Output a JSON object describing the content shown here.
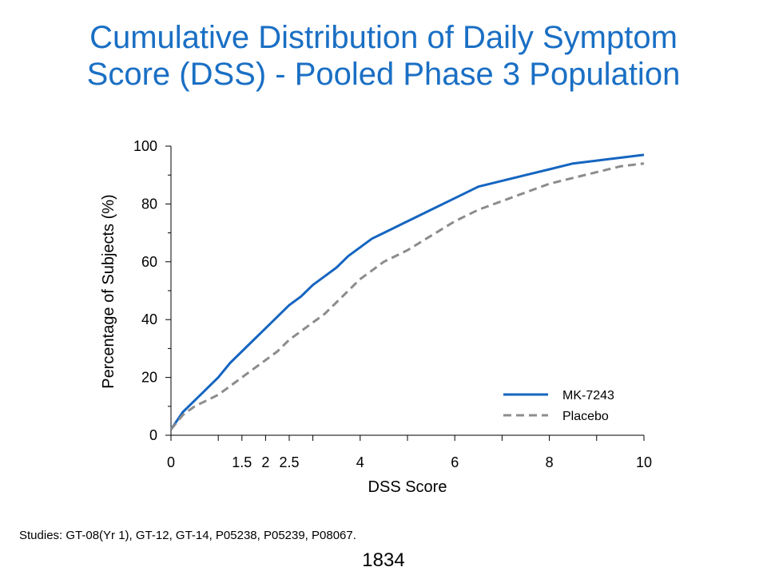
{
  "title_lines": [
    "Cumulative Distribution of Daily Symptom",
    "Score (DSS) - Pooled Phase 3 Population"
  ],
  "footnote": "Studies: GT-08(Yr 1), GT-12, GT-14, P05238, P05239, P08067.",
  "page_number": "1834",
  "colors": {
    "title": "#1a6fc4",
    "mk7243": "#1565c0",
    "placebo": "#8c8c8c"
  },
  "chart_data": {
    "type": "line",
    "title": "",
    "xlabel": "DSS Score",
    "ylabel": "Percentage of Subjects (%)",
    "xlim": [
      0,
      10
    ],
    "ylim": [
      0,
      100
    ],
    "x_ticks": [
      0,
      1.5,
      2,
      2.5,
      4,
      6,
      8,
      10
    ],
    "x_tick_labels": [
      "0",
      "1.5",
      "2",
      "2.5",
      "4",
      "6",
      "8",
      "10"
    ],
    "x_minor_ticks": [
      1,
      3,
      5,
      7,
      9
    ],
    "y_ticks": [
      0,
      20,
      40,
      60,
      80,
      100
    ],
    "y_tick_labels": [
      "0",
      "20",
      "40",
      "60",
      "80",
      "100"
    ],
    "y_minor_ticks": [
      10,
      30,
      50,
      70,
      90
    ],
    "grid": false,
    "legend_position": "bottom-right",
    "series": [
      {
        "name": "MK-7243",
        "style": "solid",
        "x": [
          0,
          0.25,
          0.5,
          0.75,
          1,
          1.25,
          1.5,
          1.75,
          2,
          2.25,
          2.5,
          2.75,
          3,
          3.25,
          3.5,
          3.75,
          4,
          4.25,
          4.5,
          4.75,
          5,
          5.5,
          6,
          6.5,
          7,
          7.5,
          8,
          8.5,
          9,
          9.5,
          10
        ],
        "y": [
          2,
          8,
          12,
          16,
          20,
          25,
          29,
          33,
          37,
          41,
          45,
          48,
          52,
          55,
          58,
          62,
          65,
          68,
          70,
          72,
          74,
          78,
          82,
          86,
          88,
          90,
          92,
          94,
          95,
          96,
          97
        ]
      },
      {
        "name": "Placebo",
        "style": "dashed",
        "x": [
          0,
          0.25,
          0.5,
          0.75,
          1,
          1.25,
          1.5,
          1.75,
          2,
          2.25,
          2.5,
          2.75,
          3,
          3.25,
          3.5,
          3.75,
          4,
          4.25,
          4.5,
          4.75,
          5,
          5.5,
          6,
          6.5,
          7,
          7.5,
          8,
          8.5,
          9,
          9.5,
          10
        ],
        "y": [
          2,
          7,
          10,
          12,
          14,
          17,
          20,
          23,
          26,
          29,
          33,
          36,
          39,
          42,
          46,
          50,
          54,
          57,
          60,
          62,
          64,
          69,
          74,
          78,
          81,
          84,
          87,
          89,
          91,
          93,
          94
        ]
      }
    ]
  }
}
